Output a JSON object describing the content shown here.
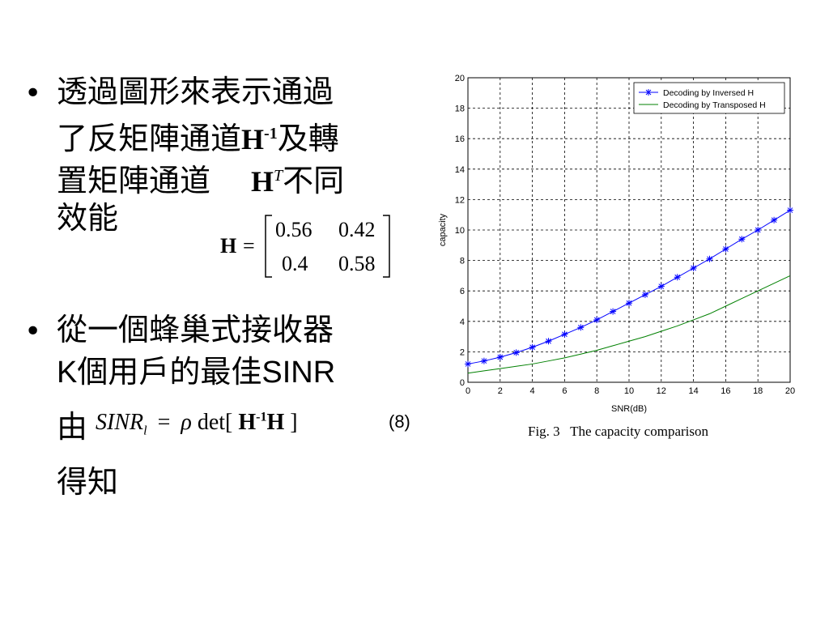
{
  "bullets": [
    {
      "lines": [
        "透過圖形來表示通過",
        "了反矩陣通道",
        "及轉",
        "置矩陣通道",
        "不同",
        "效能"
      ],
      "symbol_inverse": "H",
      "symbol_inverse_sup": "-1",
      "symbol_transpose": "H",
      "symbol_transpose_sup": "T"
    },
    {
      "line1": "從一個蜂巢式接收器",
      "line2_prefix": "K",
      "line2_cjk": "個用戶的最佳",
      "line2_suffix": "SINR",
      "line3_prefix": "由",
      "line4": "得知"
    }
  ],
  "matrix": {
    "lhs": "H",
    "eq": "=",
    "rows": [
      [
        "0.56",
        "0.42"
      ],
      [
        "0.4",
        "0.58"
      ]
    ]
  },
  "formula": {
    "lhs": "SINR",
    "sub": "l",
    "eq": "=",
    "rho": "ρ",
    "det": "det[",
    "h1": "H",
    "sup": "-1",
    "h2": "H",
    "close": "]"
  },
  "equation_number": "(8)",
  "caption": "Fig. 3   The capacity comparison",
  "chart_data": {
    "type": "line",
    "title": "",
    "xlabel": "SNR(dB)",
    "ylabel": "capacity",
    "xlim": [
      0,
      20
    ],
    "ylim": [
      0,
      20
    ],
    "xticks": [
      0,
      2,
      4,
      6,
      8,
      10,
      12,
      14,
      16,
      18,
      20
    ],
    "yticks": [
      0,
      2,
      4,
      6,
      8,
      10,
      12,
      14,
      16,
      18,
      20
    ],
    "grid": true,
    "legend_position": "top-right",
    "series": [
      {
        "name": "Decoding by Inversed H",
        "color": "#0000ff",
        "marker": "star",
        "x": [
          0,
          1,
          2,
          3,
          4,
          5,
          6,
          7,
          8,
          9,
          10,
          11,
          12,
          13,
          14,
          15,
          16,
          17,
          18,
          19,
          20
        ],
        "y": [
          1.2,
          1.4,
          1.65,
          1.95,
          2.3,
          2.7,
          3.15,
          3.6,
          4.1,
          4.65,
          5.2,
          5.75,
          6.3,
          6.9,
          7.5,
          8.1,
          8.75,
          9.4,
          10.0,
          10.65,
          11.3
        ]
      },
      {
        "name": "Decoding by Transposed H",
        "color": "#008000",
        "marker": "none",
        "x": [
          0,
          1,
          2,
          3,
          4,
          5,
          6,
          7,
          8,
          9,
          10,
          11,
          12,
          13,
          14,
          15,
          16,
          17,
          18,
          19,
          20
        ],
        "y": [
          0.6,
          0.75,
          0.9,
          1.05,
          1.2,
          1.4,
          1.6,
          1.85,
          2.1,
          2.4,
          2.7,
          3.0,
          3.35,
          3.7,
          4.1,
          4.5,
          5.0,
          5.5,
          6.0,
          6.5,
          7.0
        ]
      }
    ]
  }
}
